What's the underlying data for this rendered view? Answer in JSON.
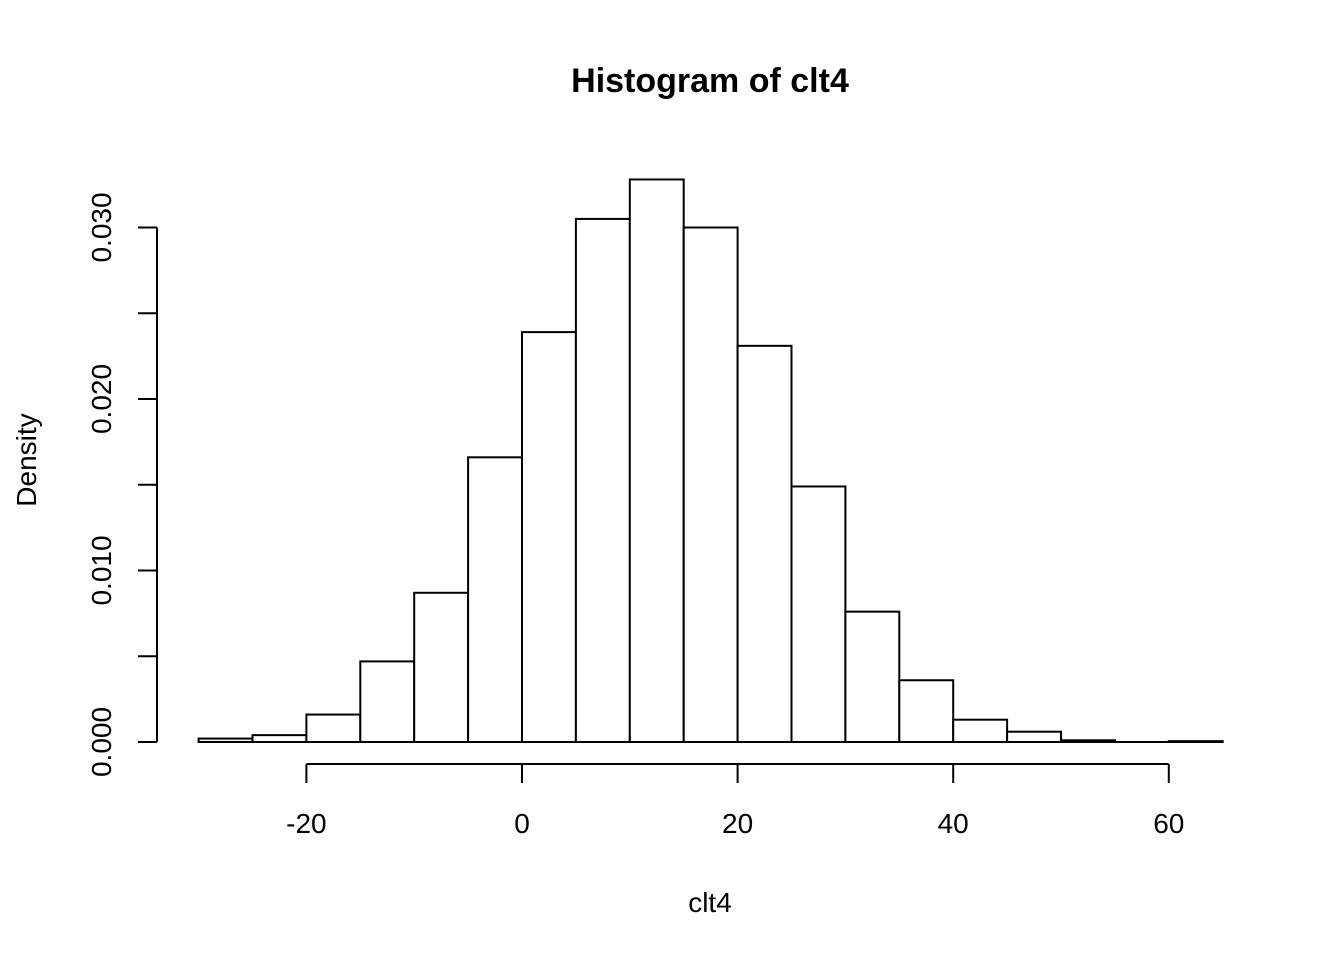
{
  "chart_data": {
    "type": "bar",
    "title": "Histogram of clt4",
    "xlabel": "clt4",
    "ylabel": "Density",
    "bin_width": 5,
    "bins": [
      {
        "start": -30,
        "end": -25,
        "density": 0.0002
      },
      {
        "start": -25,
        "end": -20,
        "density": 0.0004
      },
      {
        "start": -20,
        "end": -15,
        "density": 0.0016
      },
      {
        "start": -15,
        "end": -10,
        "density": 0.0047
      },
      {
        "start": -10,
        "end": -5,
        "density": 0.0087
      },
      {
        "start": -5,
        "end": 0,
        "density": 0.0166
      },
      {
        "start": 0,
        "end": 5,
        "density": 0.0239
      },
      {
        "start": 5,
        "end": 10,
        "density": 0.0305
      },
      {
        "start": 10,
        "end": 15,
        "density": 0.0328
      },
      {
        "start": 15,
        "end": 20,
        "density": 0.03
      },
      {
        "start": 20,
        "end": 25,
        "density": 0.0231
      },
      {
        "start": 25,
        "end": 30,
        "density": 0.0149
      },
      {
        "start": 30,
        "end": 35,
        "density": 0.0076
      },
      {
        "start": 35,
        "end": 40,
        "density": 0.0036
      },
      {
        "start": 40,
        "end": 45,
        "density": 0.0013
      },
      {
        "start": 45,
        "end": 50,
        "density": 0.0006
      },
      {
        "start": 50,
        "end": 55,
        "density": 0.0001
      },
      {
        "start": 55,
        "end": 60,
        "density": 0.0
      },
      {
        "start": 60,
        "end": 65,
        "density": 5e-05
      }
    ],
    "xlim": [
      -30,
      65
    ],
    "ylim": [
      0,
      0.033
    ],
    "x_ticks": [
      {
        "value": -20,
        "label": "-20"
      },
      {
        "value": 0,
        "label": "0"
      },
      {
        "value": 20,
        "label": "20"
      },
      {
        "value": 40,
        "label": "40"
      },
      {
        "value": 60,
        "label": "60"
      }
    ],
    "y_ticks": [
      {
        "value": 0.0,
        "label": "0.000"
      },
      {
        "value": 0.005,
        "label": ""
      },
      {
        "value": 0.01,
        "label": "0.010"
      },
      {
        "value": 0.015,
        "label": ""
      },
      {
        "value": 0.02,
        "label": "0.020"
      },
      {
        "value": 0.025,
        "label": ""
      },
      {
        "value": 0.03,
        "label": "0.030"
      }
    ],
    "grid": false,
    "bar_fill": "#ffffff",
    "bar_stroke": "#000000"
  }
}
